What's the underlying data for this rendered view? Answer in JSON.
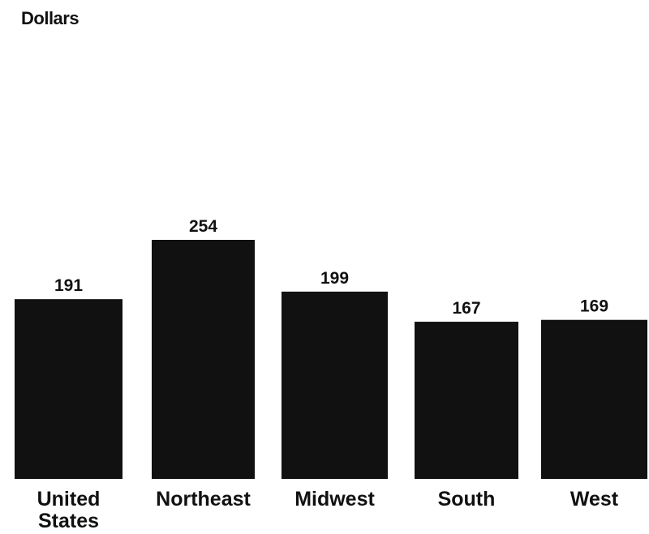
{
  "chart_data": {
    "type": "bar",
    "ylabel": "Dollars",
    "categories": [
      "United States",
      "Northeast",
      "Midwest",
      "South",
      "West"
    ],
    "category_lines": [
      [
        "United",
        "States"
      ],
      [
        "Northeast"
      ],
      [
        "Midwest"
      ],
      [
        "South"
      ],
      [
        "West"
      ]
    ],
    "values": [
      191,
      254,
      199,
      167,
      169
    ],
    "data_labels": [
      "191",
      "254",
      "199",
      "167",
      "169"
    ],
    "ylim": [
      0,
      254
    ],
    "grid": false,
    "bar_color": "#111111",
    "label_color": "#111111"
  }
}
